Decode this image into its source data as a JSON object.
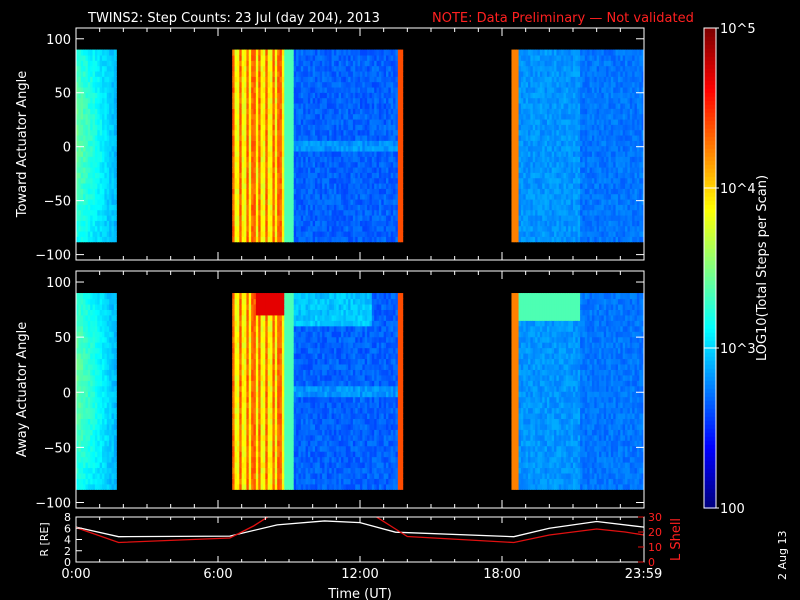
{
  "title": {
    "main": "TWINS2: Step Counts: 23 Jul (day 204), 2013",
    "note": "NOTE: Data Preliminary — Not validated"
  },
  "footer": {
    "date_stamp": "2 Aug 13"
  },
  "colors": {
    "background": "#000000",
    "text": "#ffffff",
    "note": "#ff2020",
    "r_line": "#ffffff",
    "l_shell_line": "#e01010"
  },
  "colorbar": {
    "label": "LOG10(Total Steps per Scan)",
    "scale": "log",
    "range": [
      100,
      100000
    ],
    "ticks": [
      "100",
      "10^3",
      "10^4",
      "10^5"
    ]
  },
  "chart_data": [
    {
      "type": "heatmap",
      "ylabel": "Toward Actuator Angle",
      "xlim": [
        0,
        24
      ],
      "ylim": [
        -105,
        110
      ],
      "yticks": [
        100,
        50,
        0,
        -50,
        -100
      ],
      "ytick_labels": [
        "100",
        "50",
        "0",
        "−50",
        "−100"
      ],
      "data_extent_y": [
        -88,
        90
      ],
      "x_units": "UT hours",
      "coverage": [
        {
          "start": 0.0,
          "end": 1.75,
          "level": "low-moderate"
        },
        {
          "start": 6.6,
          "end": 13.85,
          "level": "high then low"
        },
        {
          "start": 18.45,
          "end": 24.0,
          "level": "low"
        }
      ]
    },
    {
      "type": "heatmap",
      "ylabel": "Away Actuator Angle",
      "xlim": [
        0,
        24
      ],
      "ylim": [
        -105,
        110
      ],
      "yticks": [
        100,
        50,
        0,
        -50,
        -100
      ],
      "ytick_labels": [
        "100",
        "50",
        "0",
        "−50",
        "−100"
      ],
      "data_extent_y": [
        -88,
        90
      ],
      "x_units": "UT hours",
      "coverage": [
        {
          "start": 0.0,
          "end": 1.75,
          "level": "low-moderate"
        },
        {
          "start": 6.6,
          "end": 13.85,
          "level": "high then low"
        },
        {
          "start": 18.45,
          "end": 24.0,
          "level": "low"
        }
      ]
    },
    {
      "type": "line",
      "ylabel": "R [RE]",
      "y2label": "L Shell",
      "xlabel": "Time (UT)",
      "xlim": [
        0,
        24
      ],
      "xticks": [
        0,
        6,
        12,
        18,
        23.98
      ],
      "xtick_labels": [
        "0:00",
        "6:00",
        "12:00",
        "18:00",
        "23:59"
      ],
      "ylim": [
        0,
        8
      ],
      "yticks": [
        0,
        2,
        4,
        6,
        8
      ],
      "ytick_labels": [
        "0",
        "2",
        "4",
        "6",
        "8"
      ],
      "y2lim": [
        0,
        30
      ],
      "y2ticks": [
        0,
        10,
        20,
        30
      ],
      "y2tick_labels": [
        "0",
        "10",
        "20",
        "30"
      ],
      "series": [
        {
          "name": "R [RE]",
          "axis": "left",
          "x": [
            0,
            1.8,
            6.5,
            8.5,
            10.5,
            12.0,
            13.5,
            18.5,
            20.0,
            22.0,
            24.0
          ],
          "y": [
            6.2,
            4.5,
            4.6,
            6.6,
            7.3,
            7.0,
            5.3,
            4.5,
            6.0,
            7.2,
            6.2
          ]
        },
        {
          "name": "L Shell",
          "axis": "right",
          "x": [
            0,
            1.8,
            6.5,
            7.5,
            8.2,
            12.6,
            13.3,
            14.0,
            18.5,
            20.0,
            22.0,
            23.2,
            24.0
          ],
          "y": [
            23,
            13,
            16,
            24,
            31,
            31,
            24,
            17,
            13,
            18,
            22,
            20,
            18
          ]
        }
      ]
    }
  ]
}
